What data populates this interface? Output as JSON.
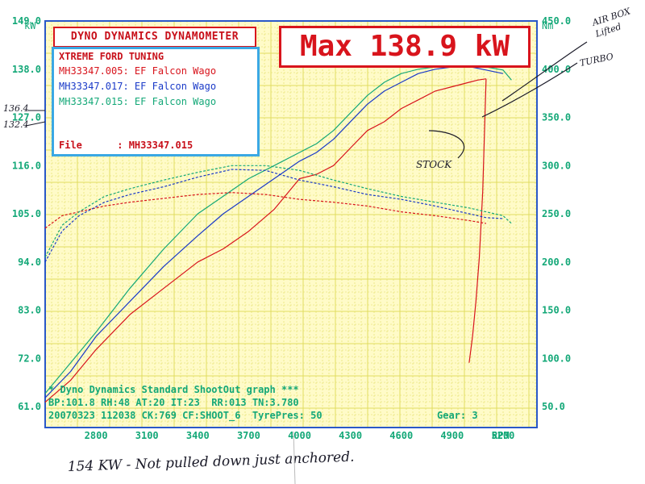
{
  "header": {
    "title": "DYNO DYNAMICS DYNAMOMETER",
    "max_label": "Max 138.9 kW"
  },
  "runs_box": {
    "heading": "XTREME FORD TUNING",
    "runs": [
      {
        "label": "MH33347.005: EF Falcon Wago",
        "color": "#d8141c"
      },
      {
        "label": "MH33347.017: EF Falcon Wago",
        "color": "#1a3ac8"
      },
      {
        "label": "MH33347.015: EF Falcon Wago",
        "color": "#14a878"
      }
    ],
    "file_label": "File      : MH33347.015"
  },
  "footer": {
    "line1": "* Dyno Dynamics Standard ShootOut graph ***",
    "line2": "BP:101.8 RH:48 AT:20 IT:23  RR:013 TN:3.780",
    "line3_left": "20070323 112038 CK:769 CF:SHOOT_6  TyrePres: 50",
    "line3_right": "Gear: 3",
    "handwritten": "154 KW - Not pulled down just anchored."
  },
  "annotations": {
    "airbox": "AIR BOX Lifted",
    "turbo": "TURBO",
    "stock": "STOCK",
    "tick_136": "136.4",
    "tick_132": "132.4"
  },
  "colors": {
    "grid_bg": "#fffbc8",
    "grid_line": "#e0dc60",
    "frame": "#2a58c8",
    "axis_text": "#14a878",
    "red": "#d8141c",
    "blue": "#1a3ac8",
    "green": "#14a878",
    "teal": "#1aa8b8",
    "hand": "#1a1a28"
  },
  "chart_data": {
    "type": "line",
    "xlabel": "RPM",
    "ylabel_left": "kW",
    "ylabel_right": "Nm",
    "xlim": [
      2500,
      5400
    ],
    "ylim_left": [
      61,
      149
    ],
    "ylim_right": [
      50,
      450
    ],
    "x_ticks": [
      2800,
      3100,
      3400,
      3700,
      4000,
      4300,
      4600,
      4900,
      5200
    ],
    "y_left_ticks": [
      "61.0",
      "72.0",
      "83.0",
      "94.0",
      "105.0",
      "116.0",
      "127.0",
      "138.0",
      "149.0"
    ],
    "y_right_ticks": [
      "50.0",
      "100.0",
      "150.0",
      "200.0",
      "250.0",
      "300.0",
      "350.0",
      "400.0",
      "450.0"
    ],
    "grid": true,
    "series": [
      {
        "name": "MH33347.005",
        "quantity": "power",
        "axis": "left",
        "color": "#d8141c",
        "x": [
          2500,
          2650,
          2800,
          3000,
          3200,
          3400,
          3550,
          3700,
          3850,
          4000,
          4100,
          4200,
          4300,
          4400,
          4500,
          4600,
          4700,
          4800,
          4900,
          5000,
          5050,
          5100
        ],
        "y": [
          62,
          67,
          74,
          82,
          88,
          94,
          97,
          101,
          106,
          113,
          114,
          116,
          120,
          124,
          126,
          129,
          131,
          133,
          134,
          135,
          135.5,
          135.8
        ]
      },
      {
        "name": "MH33347.005",
        "quantity": "power_rundown",
        "axis": "left",
        "color": "#d8141c",
        "x": [
          5100,
          5080,
          5060,
          5040,
          5020,
          5000
        ],
        "y": [
          135.8,
          110,
          95,
          85,
          77,
          71
        ]
      },
      {
        "name": "MH33347.017",
        "quantity": "power",
        "axis": "left",
        "color": "#1a3ac8",
        "x": [
          2500,
          2650,
          2800,
          3000,
          3200,
          3400,
          3550,
          3700,
          3850,
          4000,
          4100,
          4200,
          4300,
          4400,
          4500,
          4600,
          4700,
          4800,
          4900,
          5000,
          5100,
          5200
        ],
        "y": [
          63,
          69,
          77,
          85,
          93,
          100,
          105,
          109,
          113,
          117,
          119,
          122,
          126,
          130,
          133,
          135,
          137,
          138,
          138.5,
          138.6,
          137.8,
          137
        ]
      },
      {
        "name": "MH33347.015",
        "quantity": "power",
        "axis": "left",
        "color": "#14a878",
        "x": [
          2500,
          2650,
          2800,
          3000,
          3200,
          3400,
          3550,
          3700,
          3850,
          4000,
          4100,
          4200,
          4300,
          4400,
          4500,
          4600,
          4700,
          4800,
          4900,
          5000,
          5100,
          5200,
          5250
        ],
        "y": [
          64,
          71,
          78,
          88,
          97,
          105,
          109,
          113,
          116,
          119,
          121,
          124,
          128,
          132,
          135,
          137,
          138,
          138.5,
          138.8,
          138.9,
          138.5,
          137.8,
          135.5
        ]
      },
      {
        "name": "MH33347.005",
        "quantity": "torque",
        "axis": "right",
        "color": "#d8141c",
        "x": [
          2500,
          2600,
          2700,
          2850,
          3000,
          3200,
          3400,
          3600,
          3800,
          4000,
          4200,
          4400,
          4600,
          4800,
          5000,
          5100
        ],
        "y": [
          235,
          248,
          252,
          258,
          262,
          266,
          270,
          272,
          270,
          265,
          262,
          258,
          252,
          248,
          243,
          240
        ]
      },
      {
        "name": "MH33347.017",
        "quantity": "torque",
        "axis": "right",
        "color": "#1a3ac8",
        "x": [
          2500,
          2600,
          2700,
          2850,
          3000,
          3200,
          3400,
          3600,
          3800,
          4000,
          4200,
          4400,
          4600,
          4800,
          5000,
          5100,
          5200
        ],
        "y": [
          200,
          232,
          248,
          262,
          270,
          278,
          288,
          296,
          295,
          285,
          278,
          270,
          265,
          258,
          250,
          246,
          245
        ]
      },
      {
        "name": "MH33347.015",
        "quantity": "torque",
        "axis": "right",
        "color": "#14a878",
        "x": [
          2500,
          2600,
          2700,
          2850,
          3000,
          3200,
          3400,
          3600,
          3800,
          4000,
          4200,
          4400,
          4600,
          4800,
          5000,
          5200,
          5250
        ],
        "y": [
          205,
          238,
          252,
          268,
          276,
          285,
          293,
          300,
          300,
          295,
          285,
          276,
          268,
          262,
          256,
          248,
          240
        ]
      }
    ]
  }
}
